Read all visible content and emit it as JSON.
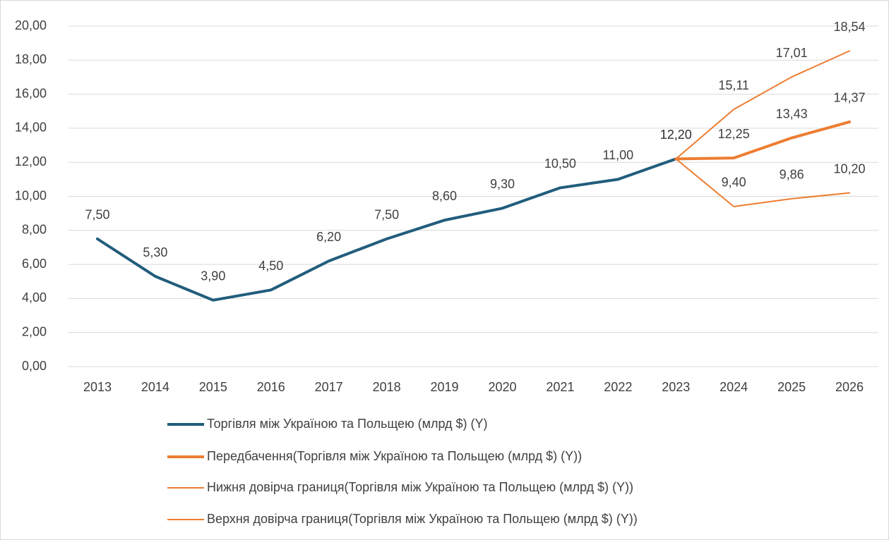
{
  "chart_data": {
    "type": "line",
    "categories": [
      "2013",
      "2014",
      "2015",
      "2016",
      "2017",
      "2018",
      "2019",
      "2020",
      "2021",
      "2022",
      "2023",
      "2024",
      "2025",
      "2026"
    ],
    "ylim": [
      0,
      20
    ],
    "yticks": [
      {
        "value": 0,
        "label": "0,00"
      },
      {
        "value": 2,
        "label": "2,00"
      },
      {
        "value": 4,
        "label": "4,00"
      },
      {
        "value": 6,
        "label": "6,00"
      },
      {
        "value": 8,
        "label": "8,00"
      },
      {
        "value": 10,
        "label": "10,00"
      },
      {
        "value": 12,
        "label": "12,00"
      },
      {
        "value": 14,
        "label": "14,00"
      },
      {
        "value": 16,
        "label": "16,00"
      },
      {
        "value": 18,
        "label": "18,00"
      },
      {
        "value": 20,
        "label": "20,00"
      }
    ],
    "grid": true,
    "legend_position": "bottom",
    "series": [
      {
        "name": "Торгівля між Україною та Польщею (млрд $) (Y)",
        "color": "#215d7c",
        "width": 4,
        "values": [
          7.5,
          5.3,
          3.9,
          4.5,
          6.2,
          7.5,
          8.6,
          9.3,
          10.5,
          11.0,
          12.2,
          null,
          null,
          null
        ],
        "value_labels": [
          "7,50",
          "5,30",
          "3,90",
          "4,50",
          "6,20",
          "7,50",
          "8,60",
          "9,30",
          "10,50",
          "11,00",
          "12,20",
          null,
          null,
          null
        ]
      },
      {
        "name": "Передбачення(Торгівля між Україною та Польщею (млрд $) (Y))",
        "color": "#ed7d31",
        "width": 4,
        "values": [
          null,
          null,
          null,
          null,
          null,
          null,
          null,
          null,
          null,
          null,
          12.2,
          12.25,
          13.43,
          14.37
        ],
        "value_labels": [
          null,
          null,
          null,
          null,
          null,
          null,
          null,
          null,
          null,
          null,
          "12,20",
          "12,25",
          "13,43",
          "14,37"
        ]
      },
      {
        "name": "Нижня довірча границя(Торгівля між Україною та Польщею (млрд $) (Y))",
        "color": "#ed7d31",
        "width": 2,
        "values": [
          null,
          null,
          null,
          null,
          null,
          null,
          null,
          null,
          null,
          null,
          12.2,
          9.4,
          9.86,
          10.2
        ],
        "value_labels": [
          null,
          null,
          null,
          null,
          null,
          null,
          null,
          null,
          null,
          null,
          null,
          "9,40",
          "9,86",
          "10,20"
        ]
      },
      {
        "name": "Верхня довірча границя(Торгівля між Україною та Польщею (млрд $) (Y))",
        "color": "#ed7d31",
        "width": 2,
        "values": [
          null,
          null,
          null,
          null,
          null,
          null,
          null,
          null,
          null,
          null,
          12.2,
          15.11,
          17.01,
          18.54
        ],
        "value_labels": [
          null,
          null,
          null,
          null,
          null,
          null,
          null,
          null,
          null,
          null,
          null,
          "15,11",
          "17,01",
          "18,54"
        ]
      }
    ]
  }
}
